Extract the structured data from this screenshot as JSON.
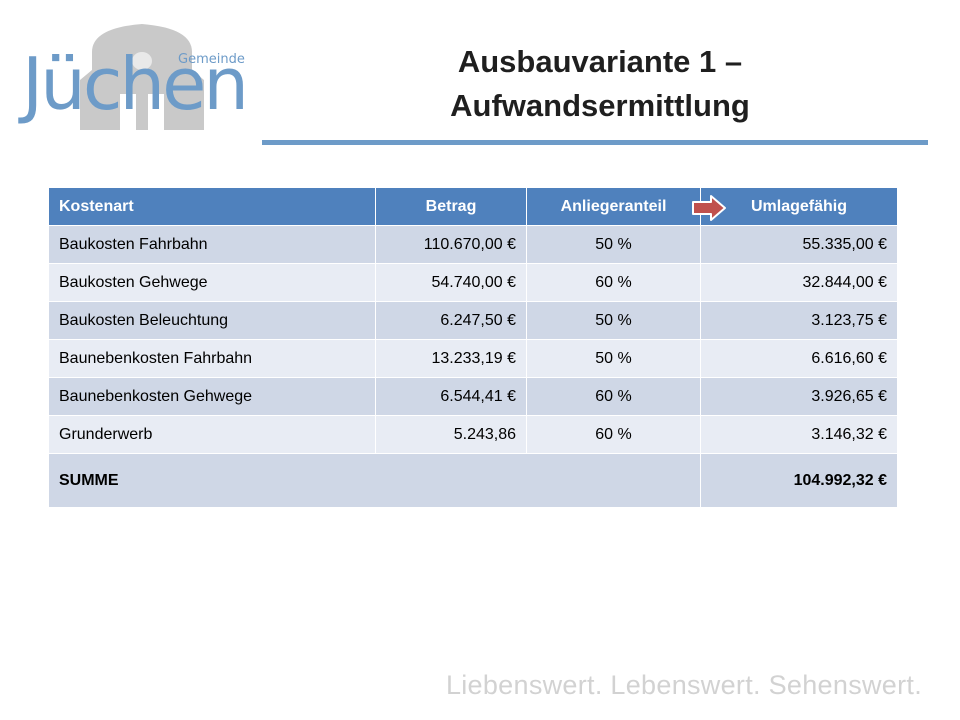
{
  "logo": {
    "word": "Jüchen",
    "sub": "Gemeinde"
  },
  "slide": {
    "title_line1": "Ausbauvariante 1 –",
    "title_line2": "Aufwandsermittlung"
  },
  "table": {
    "headers": [
      "Kostenart",
      "Betrag",
      "Anliegeranteil",
      "Umlagefähig"
    ],
    "rows": [
      [
        "Baukosten Fahrbahn",
        "110.670,00 €",
        "50 %",
        "55.335,00 €"
      ],
      [
        "Baukosten Gehwege",
        "54.740,00 €",
        "60 %",
        "32.844,00 €"
      ],
      [
        "Baukosten Beleuchtung",
        "6.247,50 €",
        "50 %",
        "3.123,75 €"
      ],
      [
        "Baunebenkosten Fahrbahn",
        "13.233,19 €",
        "50 %",
        "6.616,60 €"
      ],
      [
        "Baunebenkosten Gehwege",
        "6.544,41 €",
        "60 %",
        "3.926,65 €"
      ],
      [
        "Grunderwerb",
        "5.243,86",
        "60 %",
        "3.146,32 €"
      ]
    ],
    "sum_label": "SUMME",
    "sum_value": "104.992,32 €"
  },
  "footer": {
    "slogan": "Liebenswert. Lebenswert. Sehenswert."
  },
  "colors": {
    "header_blue": "#4f81bd",
    "row_dark": "#cfd7e6",
    "row_light": "#e8ecf4",
    "accent": "#6d9bc8",
    "arrow_red": "#c0504d"
  },
  "icons": {
    "logo_building": "building-silhouette-icon",
    "header_arrow": "right-arrow-icon"
  }
}
